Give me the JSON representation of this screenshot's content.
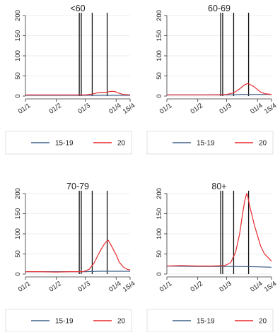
{
  "chart_data": [
    {
      "type": "line",
      "title": "<60",
      "ylim": [
        0,
        200
      ],
      "yticks": [
        "0",
        "50",
        "100",
        "150",
        "200"
      ],
      "xlim": [
        "01/1",
        "15/4"
      ],
      "xticks": [
        "01/1",
        "01/2",
        "01/3",
        "01/4",
        "15/4"
      ],
      "vlines": [
        "24/2",
        "26/2",
        "08/3",
        "23/3"
      ],
      "grid": true,
      "legend": "bottom",
      "series": [
        {
          "name": "15-19",
          "color": "#3f6089",
          "x": [
            "01/1",
            "15/4"
          ],
          "y": [
            2,
            2
          ]
        },
        {
          "name": "20",
          "color": "#e8292c",
          "x": [
            "01/1",
            "15/1",
            "01/2",
            "15/2",
            "01/3",
            "08/3",
            "13/3",
            "18/3",
            "22/3",
            "25/3",
            "28/3",
            "31/3",
            "04/4",
            "08/4",
            "15/4"
          ],
          "y": [
            3,
            3,
            3,
            3,
            3,
            5,
            8,
            9,
            9,
            11,
            12,
            11,
            7,
            4,
            3
          ]
        }
      ]
    },
    {
      "type": "line",
      "title": "60-69",
      "ylim": [
        0,
        200
      ],
      "yticks": [
        "0",
        "50",
        "100",
        "150",
        "200"
      ],
      "xlim": [
        "01/1",
        "15/4"
      ],
      "xticks": [
        "01/1",
        "01/2",
        "01/3",
        "01/4",
        "15/4"
      ],
      "vlines": [
        "24/2",
        "26/2",
        "08/3",
        "23/3"
      ],
      "grid": true,
      "legend": "bottom",
      "series": [
        {
          "name": "15-19",
          "color": "#3f6089",
          "x": [
            "01/1",
            "01/2",
            "01/3",
            "15/3",
            "01/4",
            "15/4"
          ],
          "y": [
            3,
            3,
            3,
            4,
            4,
            4
          ]
        },
        {
          "name": "20",
          "color": "#e8292c",
          "x": [
            "01/1",
            "15/1",
            "01/2",
            "15/2",
            "01/3",
            "08/3",
            "13/3",
            "16/3",
            "19/3",
            "22/3",
            "25/3",
            "28/3",
            "31/3",
            "04/4",
            "08/4",
            "15/4"
          ],
          "y": [
            3,
            3,
            3,
            3,
            4,
            8,
            16,
            22,
            28,
            31,
            28,
            24,
            18,
            10,
            6,
            4
          ]
        }
      ]
    },
    {
      "type": "line",
      "title": "70-79",
      "ylim": [
        0,
        200
      ],
      "yticks": [
        "0",
        "50",
        "100",
        "150",
        "200"
      ],
      "xlim": [
        "01/1",
        "15/4"
      ],
      "xticks": [
        "01/1",
        "01/2",
        "01/3",
        "01/4",
        "15/4"
      ],
      "vlines": [
        "24/2",
        "26/2",
        "08/3",
        "23/3"
      ],
      "grid": true,
      "legend": "bottom",
      "series": [
        {
          "name": "15-19",
          "color": "#3f6089",
          "x": [
            "01/1",
            "01/2",
            "01/3",
            "15/3",
            "01/4",
            "15/4"
          ],
          "y": [
            6,
            6,
            6,
            7,
            7,
            7
          ]
        },
        {
          "name": "20",
          "color": "#e8292c",
          "x": [
            "01/1",
            "15/1",
            "01/2",
            "15/2",
            "28/2",
            "05/3",
            "10/3",
            "14/3",
            "17/3",
            "20/3",
            "22/3",
            "24/3",
            "26/3",
            "29/3",
            "01/4",
            "04/4",
            "08/4",
            "12/4",
            "15/4"
          ],
          "y": [
            6,
            6,
            5,
            6,
            6,
            12,
            28,
            48,
            62,
            74,
            80,
            84,
            76,
            62,
            48,
            30,
            18,
            12,
            10
          ]
        }
      ]
    },
    {
      "type": "line",
      "title": "80+",
      "ylim": [
        0,
        200
      ],
      "yticks": [
        "0",
        "50",
        "100",
        "150",
        "200"
      ],
      "xlim": [
        "01/1",
        "15/4"
      ],
      "xticks": [
        "01/1",
        "01/2",
        "01/3",
        "01/4",
        "15/4"
      ],
      "vlines": [
        "24/2",
        "26/2",
        "08/3",
        "23/3"
      ],
      "grid": true,
      "legend": "bottom",
      "series": [
        {
          "name": "15-19",
          "color": "#3f6089",
          "x": [
            "01/1",
            "01/2",
            "01/3",
            "15/3",
            "01/4",
            "15/4"
          ],
          "y": [
            20,
            19,
            19,
            19,
            18,
            17
          ]
        },
        {
          "name": "20",
          "color": "#e8292c",
          "x": [
            "01/1",
            "15/1",
            "01/2",
            "15/2",
            "28/2",
            "05/3",
            "10/3",
            "14/3",
            "17/3",
            "19/3",
            "21/3",
            "22/3",
            "24/3",
            "26/3",
            "29/3",
            "01/4",
            "04/4",
            "08/4",
            "12/4",
            "15/4"
          ],
          "y": [
            20,
            21,
            20,
            20,
            21,
            28,
            55,
            100,
            150,
            180,
            200,
            195,
            170,
            150,
            120,
            95,
            70,
            50,
            40,
            32
          ]
        }
      ]
    }
  ]
}
